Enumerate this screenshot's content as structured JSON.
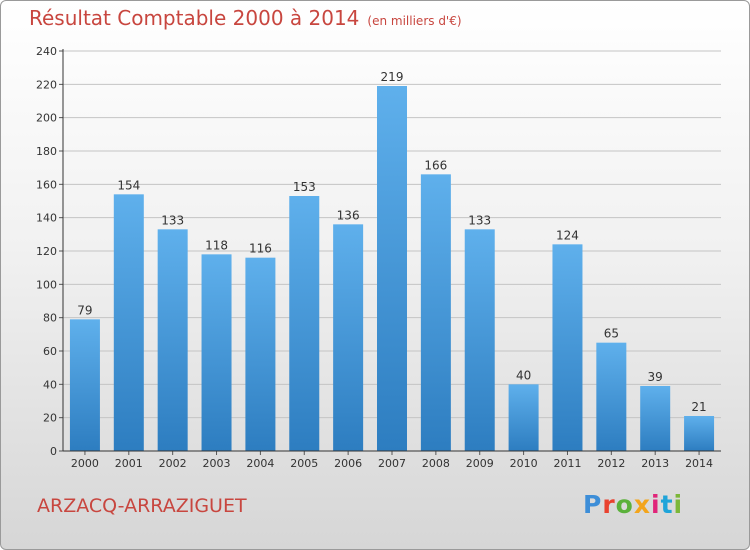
{
  "header": {
    "title": "Résultat Comptable 2000 à 2014",
    "subtitle": "(en milliers d'€)"
  },
  "footer": {
    "commune": "ARZACQ-ARRAZIGUET",
    "logo": {
      "letters": [
        "P",
        "r",
        "o",
        "x",
        "i",
        "t",
        "i"
      ],
      "colors": [
        "#3d8ed8",
        "#e9422f",
        "#5bb13b",
        "#f3a51c",
        "#e0257a",
        "#1fa4d9",
        "#7cb739"
      ]
    }
  },
  "colors": {
    "bar_top": "#5fb0ec",
    "bar_bottom": "#2d7dc0",
    "title": "#c8463f"
  },
  "chart_data": {
    "type": "bar",
    "title": "Résultat Comptable 2000 à 2014",
    "subtitle": "(en milliers d'€)",
    "categories": [
      "2000",
      "2001",
      "2002",
      "2003",
      "2004",
      "2005",
      "2006",
      "2007",
      "2008",
      "2009",
      "2010",
      "2011",
      "2012",
      "2013",
      "2014"
    ],
    "values": [
      79,
      154,
      133,
      118,
      116,
      153,
      136,
      219,
      166,
      133,
      40,
      124,
      65,
      39,
      21
    ],
    "ylim": [
      0,
      240
    ],
    "yticks": [
      0,
      20,
      40,
      60,
      80,
      100,
      120,
      140,
      160,
      180,
      200,
      220,
      240
    ],
    "grid": true
  }
}
